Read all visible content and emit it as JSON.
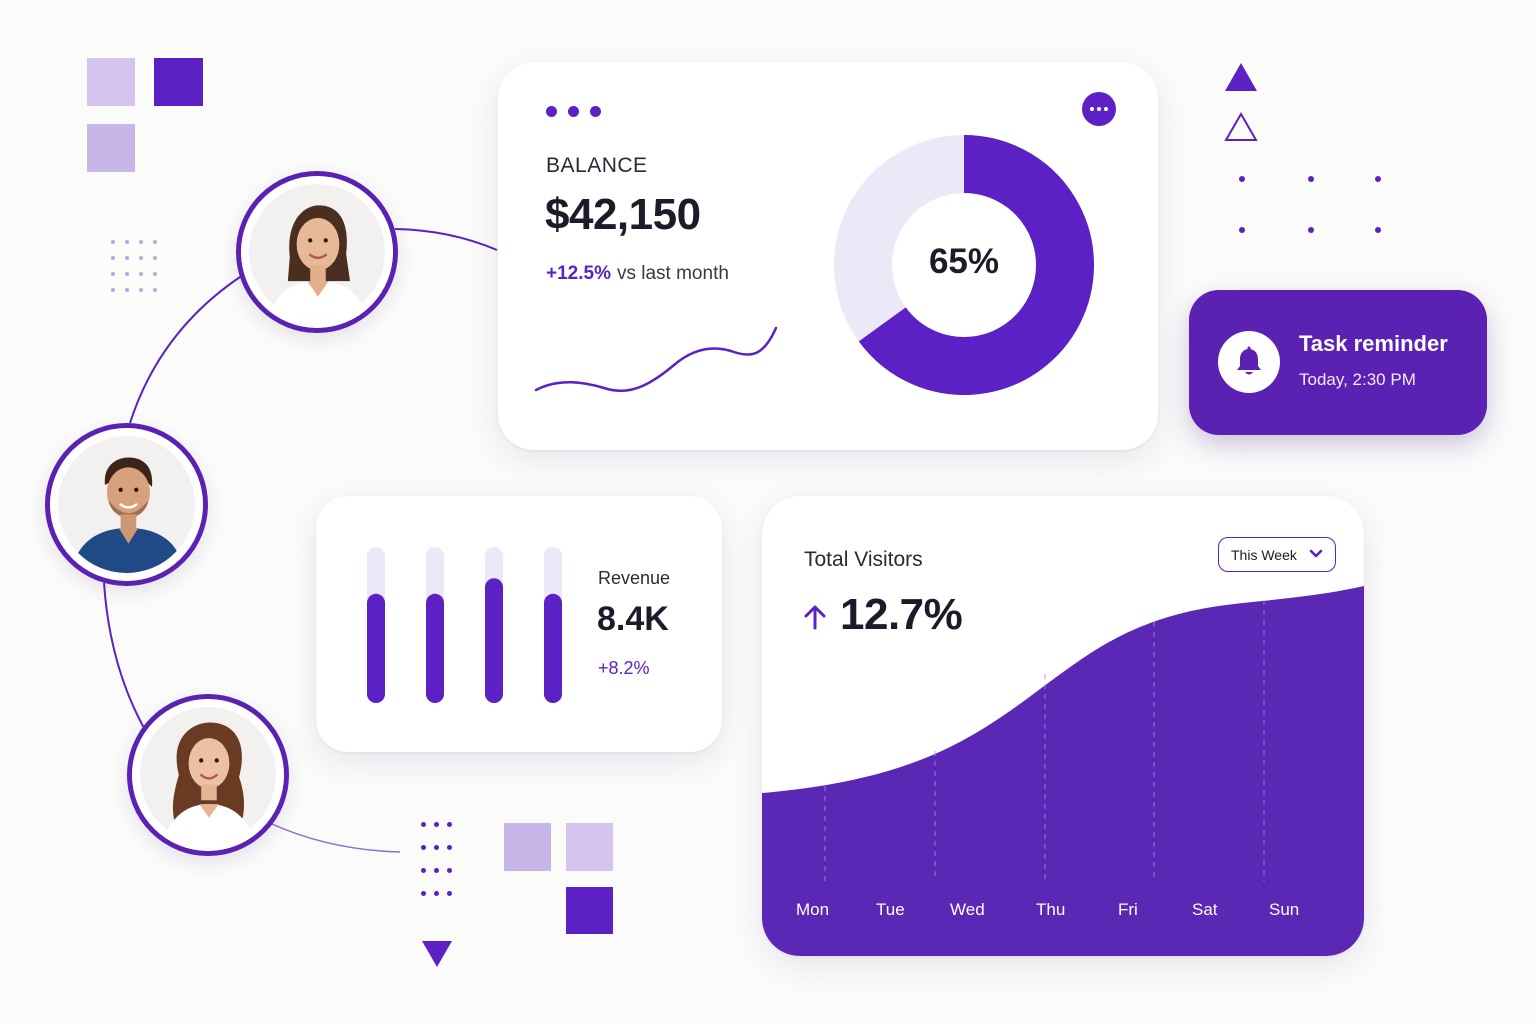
{
  "balance": {
    "label": "BALANCE",
    "value": "$42,150",
    "change": "+12.5%",
    "change_suffix": "vs last month",
    "donut_percent": 65,
    "donut_label": "65%"
  },
  "task": {
    "title": "Task reminder",
    "time": "Today, 2:30 PM"
  },
  "revenue": {
    "label": "Revenue",
    "value": "8.4K",
    "change": "+8.2%",
    "bars": [
      0.7,
      0.7,
      0.8,
      0.7
    ]
  },
  "visitors": {
    "title": "Total Visitors",
    "value": "12.7%",
    "period": "This Week",
    "days": [
      "Mon",
      "Tue",
      "Wed",
      "Thu",
      "Fri",
      "Sat",
      "Sun"
    ]
  },
  "avatars": [
    {
      "name": "woman-short-hair"
    },
    {
      "name": "man-blue-shirt"
    },
    {
      "name": "woman-long-hair"
    }
  ],
  "colors": {
    "accent": "#5b21c4",
    "accent_dark": "#5b21b3",
    "accent_light": "#ede8f8",
    "background": "#fbfbfa"
  }
}
